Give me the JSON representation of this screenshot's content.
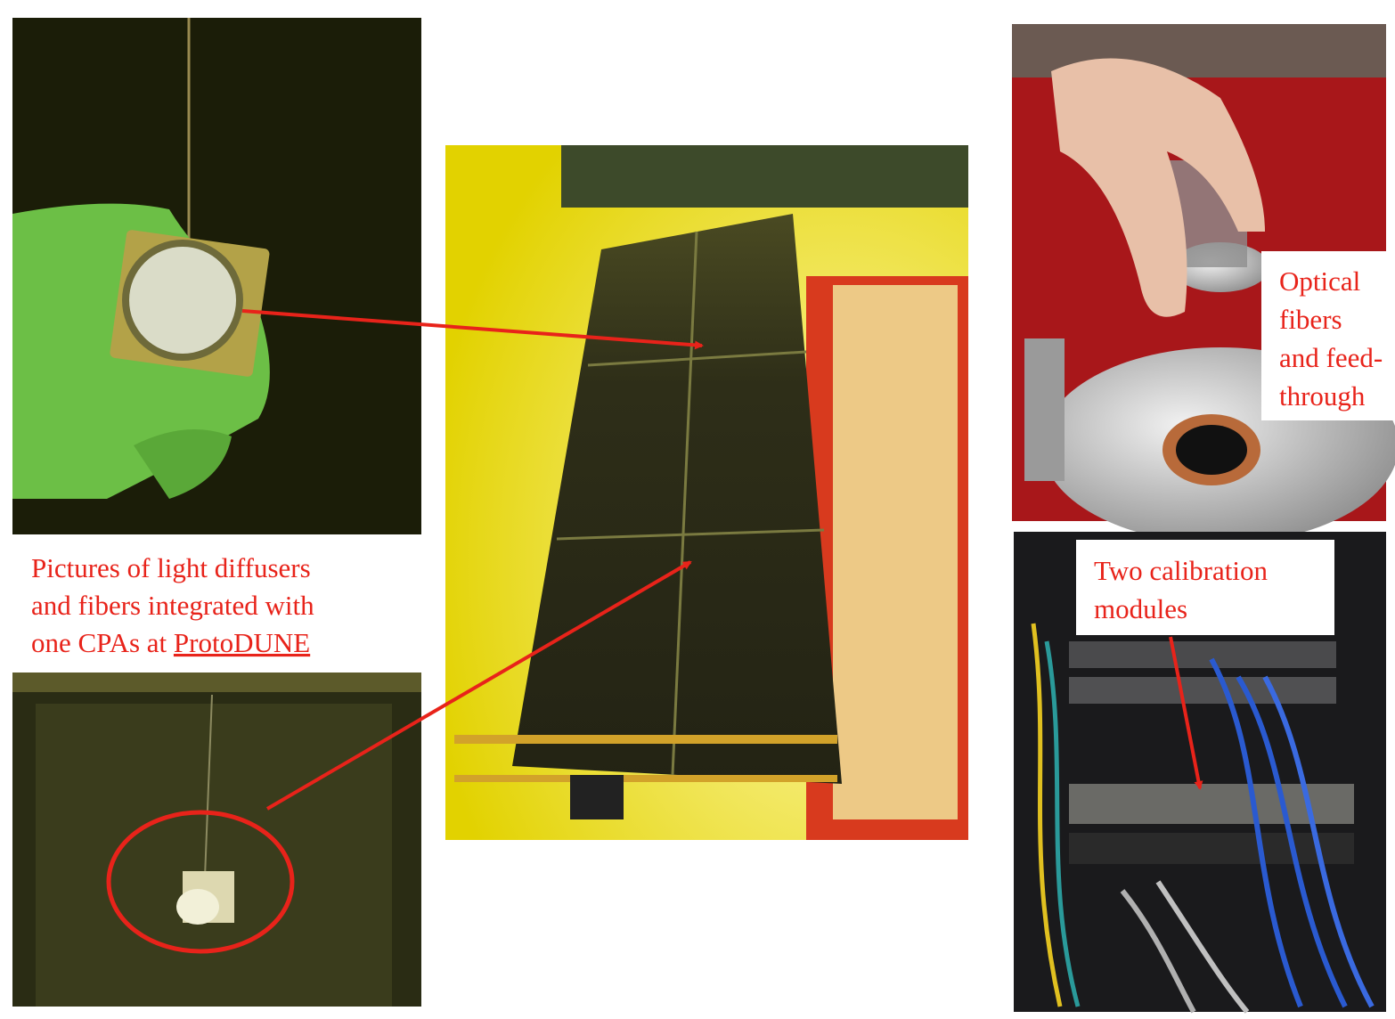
{
  "captions": {
    "left": {
      "lines": [
        "Pictures of light diffusers",
        "and fibers integrated with",
        "one CPAs at",
        "ProtoDUNE"
      ]
    },
    "optical": {
      "lines": [
        "Optical",
        "fibers",
        "and feed-",
        "through"
      ]
    },
    "calibration": {
      "lines": [
        "Two calibration",
        "modules"
      ]
    }
  }
}
